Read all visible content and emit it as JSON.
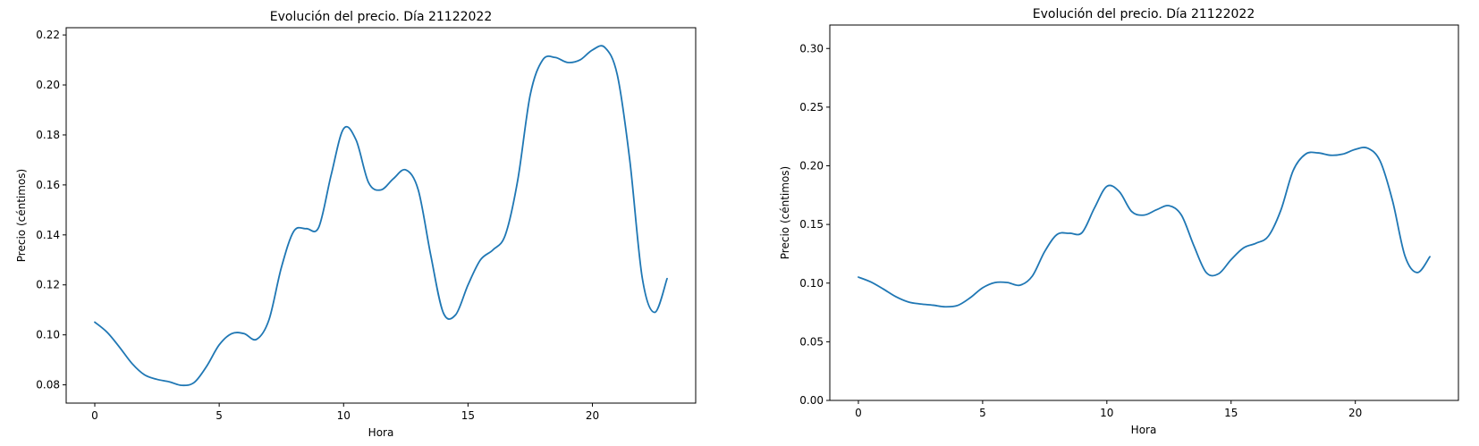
{
  "chart_data": [
    {
      "type": "line",
      "title": "Evolución del precio. Día 21122022",
      "xlabel": "Hora",
      "ylabel": "Precio (céntimos)",
      "xlim": [
        -1.15,
        24.15
      ],
      "ylim": [
        0.0727,
        0.2229
      ],
      "xticks": [
        0,
        5,
        10,
        15,
        20
      ],
      "xtick_labels": [
        "0",
        "5",
        "10",
        "15",
        "20"
      ],
      "yticks": [
        0.08,
        0.1,
        0.12,
        0.14,
        0.16,
        0.18,
        0.2,
        0.22
      ],
      "ytick_labels": [
        "0.08",
        "0.10",
        "0.12",
        "0.14",
        "0.16",
        "0.18",
        "0.20",
        "0.22"
      ],
      "grid": false,
      "color": "#1f77b4",
      "series": [
        {
          "x": [
            0,
            0.5,
            1,
            1.5,
            2,
            2.5,
            3,
            3.5,
            4,
            4.5,
            5,
            5.5,
            6,
            6.5,
            7,
            7.5,
            8,
            8.5,
            9,
            9.5,
            10,
            10.5,
            11,
            11.5,
            12,
            12.5,
            13,
            13.5,
            14,
            14.5,
            15,
            15.5,
            16,
            16.5,
            17,
            17.5,
            18,
            18.5,
            19,
            19.5,
            20,
            20.5,
            21,
            21.5,
            22,
            22.5,
            23
          ],
          "y": [
            0.1051,
            0.101,
            0.095,
            0.0885,
            0.084,
            0.0822,
            0.0812,
            0.0798,
            0.081,
            0.0875,
            0.096,
            0.1005,
            0.1005,
            0.0982,
            0.106,
            0.127,
            0.1415,
            0.1425,
            0.143,
            0.164,
            0.1825,
            0.178,
            0.161,
            0.158,
            0.1625,
            0.166,
            0.158,
            0.132,
            0.109,
            0.108,
            0.12,
            0.13,
            0.134,
            0.14,
            0.162,
            0.196,
            0.21,
            0.211,
            0.209,
            0.21,
            0.214,
            0.215,
            0.204,
            0.17,
            0.123,
            0.109,
            0.1225
          ]
        }
      ]
    },
    {
      "type": "line",
      "title": "Evolución del precio. Día 21122022",
      "xlabel": "Hora",
      "ylabel": "Precio (céntimos)",
      "xlim": [
        -1.15,
        24.15
      ],
      "ylim": [
        0.0,
        0.32
      ],
      "xticks": [
        0,
        5,
        10,
        15,
        20
      ],
      "xtick_labels": [
        "0",
        "5",
        "10",
        "15",
        "20"
      ],
      "yticks": [
        0.0,
        0.05,
        0.1,
        0.15,
        0.2,
        0.25,
        0.3
      ],
      "ytick_labels": [
        "0.00",
        "0.05",
        "0.10",
        "0.15",
        "0.20",
        "0.25",
        "0.30"
      ],
      "grid": false,
      "color": "#1f77b4",
      "series": [
        {
          "x": [
            0,
            0.5,
            1,
            1.5,
            2,
            2.5,
            3,
            3.5,
            4,
            4.5,
            5,
            5.5,
            6,
            6.5,
            7,
            7.5,
            8,
            8.5,
            9,
            9.5,
            10,
            10.5,
            11,
            11.5,
            12,
            12.5,
            13,
            13.5,
            14,
            14.5,
            15,
            15.5,
            16,
            16.5,
            17,
            17.5,
            18,
            18.5,
            19,
            19.5,
            20,
            20.5,
            21,
            21.5,
            22,
            22.5,
            23
          ],
          "y": [
            0.1051,
            0.101,
            0.095,
            0.0885,
            0.084,
            0.0822,
            0.0812,
            0.0798,
            0.081,
            0.0875,
            0.096,
            0.1005,
            0.1005,
            0.0982,
            0.106,
            0.127,
            0.1415,
            0.1425,
            0.143,
            0.164,
            0.1825,
            0.178,
            0.161,
            0.158,
            0.1625,
            0.166,
            0.158,
            0.132,
            0.109,
            0.108,
            0.12,
            0.13,
            0.134,
            0.14,
            0.162,
            0.196,
            0.21,
            0.211,
            0.209,
            0.21,
            0.214,
            0.215,
            0.204,
            0.17,
            0.123,
            0.109,
            0.1225
          ]
        }
      ]
    }
  ]
}
